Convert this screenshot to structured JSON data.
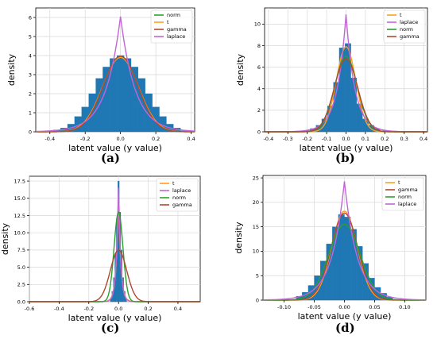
{
  "chart_data": [
    {
      "panel": "(a)",
      "type": "area",
      "xlabel": "latent value (y value)",
      "ylabel": "density",
      "xlim": [
        -0.48,
        0.42
      ],
      "ylim": [
        0,
        6.5
      ],
      "xticks": [
        -0.4,
        -0.2,
        0.0,
        0.2,
        0.4
      ],
      "yticks": [
        0,
        1,
        2,
        3,
        4,
        5,
        6
      ],
      "xtick_labels": [
        "-0.4",
        "-0.2",
        "0.0",
        "0.2",
        "0.4"
      ],
      "ytick_labels": [
        "0",
        "1",
        "2",
        "3",
        "4",
        "5",
        "6"
      ],
      "legend": [
        "norm",
        "t",
        "gamma",
        "laplace"
      ],
      "legend_position": "top-right",
      "grid": true,
      "histogram": {
        "x": [
          -0.4,
          -0.36,
          -0.32,
          -0.28,
          -0.24,
          -0.2,
          -0.16,
          -0.12,
          -0.08,
          -0.04,
          0.0,
          0.04,
          0.08,
          0.12,
          0.16,
          0.2,
          0.24,
          0.28,
          0.32,
          0.36
        ],
        "values": [
          0.05,
          0.1,
          0.2,
          0.4,
          0.8,
          1.3,
          2.0,
          2.8,
          3.4,
          3.85,
          4.0,
          3.85,
          3.4,
          2.8,
          2.0,
          1.3,
          0.8,
          0.4,
          0.2,
          0.05
        ]
      },
      "series": [
        {
          "name": "norm",
          "dist": "normal",
          "peak": 3.95,
          "scale": 0.1
        },
        {
          "name": "t",
          "dist": "normal",
          "peak": 3.9,
          "scale": 0.102
        },
        {
          "name": "gamma",
          "dist": "normal",
          "peak": 3.97,
          "scale": 0.099
        },
        {
          "name": "laplace",
          "dist": "laplace",
          "peak": 6.05,
          "scale": 0.083
        }
      ]
    },
    {
      "panel": "(b)",
      "type": "area",
      "xlabel": "latent value (y value)",
      "ylabel": "density",
      "xlim": [
        -0.42,
        0.42
      ],
      "ylim": [
        0,
        11.5
      ],
      "xticks": [
        -0.4,
        -0.3,
        -0.2,
        -0.1,
        0.0,
        0.1,
        0.2,
        0.3,
        0.4
      ],
      "yticks": [
        0,
        2,
        4,
        6,
        8,
        10
      ],
      "xtick_labels": [
        "-0.4",
        "-0.3",
        "-0.2",
        "-0.1",
        "0.0",
        "0.1",
        "0.2",
        "0.3",
        "0.4"
      ],
      "ytick_labels": [
        "0",
        "2",
        "4",
        "6",
        "8",
        "10"
      ],
      "legend": [
        "t",
        "laplace",
        "norm",
        "gamma"
      ],
      "legend_position": "top-right",
      "grid": true,
      "histogram": {
        "x": [
          -0.2,
          -0.17,
          -0.14,
          -0.11,
          -0.08,
          -0.05,
          -0.02,
          0.01,
          0.04,
          0.07,
          0.1,
          0.13,
          0.16,
          0.19
        ],
        "values": [
          0.1,
          0.3,
          0.6,
          1.2,
          2.4,
          4.6,
          7.8,
          8.2,
          5.0,
          2.6,
          1.2,
          0.6,
          0.3,
          0.1
        ]
      },
      "series": [
        {
          "name": "t",
          "dist": "normal",
          "peak": 7.9,
          "scale": 0.05
        },
        {
          "name": "laplace",
          "dist": "laplace",
          "peak": 10.9,
          "scale": 0.046
        },
        {
          "name": "norm",
          "dist": "normal",
          "peak": 7.0,
          "scale": 0.058
        },
        {
          "name": "gamma",
          "dist": "normal",
          "peak": 6.8,
          "scale": 0.06
        }
      ]
    },
    {
      "panel": "(c)",
      "type": "area",
      "xlabel": "latent value (y value)",
      "ylabel": "density",
      "xlim": [
        -0.6,
        0.55
      ],
      "ylim": [
        0,
        18.2
      ],
      "xticks": [
        -0.6,
        -0.4,
        -0.2,
        0.0,
        0.2,
        0.4
      ],
      "yticks": [
        0.0,
        2.5,
        5.0,
        7.5,
        10.0,
        12.5,
        15.0,
        17.5
      ],
      "xtick_labels": [
        "-0.6",
        "-0.4",
        "-0.2",
        "0.0",
        "0.2",
        "0.4"
      ],
      "ytick_labels": [
        "0.0",
        "2.5",
        "5.0",
        "7.5",
        "10.0",
        "12.5",
        "15.0",
        "17.5"
      ],
      "legend": [
        "t",
        "laplace",
        "norm",
        "gamma"
      ],
      "legend_position": "top-right",
      "grid": true,
      "histogram": {
        "x": [
          -0.05,
          -0.04,
          -0.03,
          -0.02,
          -0.01,
          0.0,
          0.01,
          0.02,
          0.03,
          0.04,
          0.05
        ],
        "values": [
          0.5,
          1.5,
          3.5,
          7.0,
          12.0,
          17.5,
          13.0,
          7.5,
          3.5,
          1.5,
          0.5
        ]
      },
      "series": [
        {
          "name": "t",
          "dist": "laplace",
          "peak": 16.0,
          "scale": 0.015
        },
        {
          "name": "laplace",
          "dist": "laplace",
          "peak": 17.8,
          "scale": 0.014
        },
        {
          "name": "norm",
          "dist": "normal",
          "peak": 13.0,
          "scale": 0.03
        },
        {
          "name": "gamma",
          "dist": "normal",
          "peak": 7.5,
          "scale": 0.055
        }
      ]
    },
    {
      "panel": "(d)",
      "type": "area",
      "xlabel": "latent value (y value)",
      "ylabel": "density",
      "xlim": [
        -0.135,
        0.135
      ],
      "ylim": [
        0,
        25.5
      ],
      "xticks": [
        -0.1,
        -0.05,
        0.0,
        0.05,
        0.1
      ],
      "yticks": [
        0,
        5,
        10,
        15,
        20,
        25
      ],
      "xtick_labels": [
        "-0.10",
        "-0.05",
        "0.00",
        "0.05",
        "0.10"
      ],
      "ytick_labels": [
        "0",
        "5",
        "10",
        "15",
        "20",
        "25"
      ],
      "legend": [
        "t",
        "gamma",
        "norm",
        "laplace"
      ],
      "legend_position": "top-right",
      "grid": true,
      "histogram": {
        "x": [
          -0.075,
          -0.065,
          -0.055,
          -0.045,
          -0.035,
          -0.025,
          -0.015,
          -0.005,
          0.005,
          0.015,
          0.025,
          0.035,
          0.045,
          0.055,
          0.065,
          0.075
        ],
        "values": [
          0.8,
          1.6,
          3.0,
          5.0,
          8.0,
          11.5,
          15.0,
          17.5,
          17.0,
          14.5,
          11.0,
          7.5,
          4.5,
          2.6,
          1.4,
          0.6
        ]
      },
      "series": [
        {
          "name": "t",
          "dist": "normal",
          "peak": 18.2,
          "scale": 0.021
        },
        {
          "name": "gamma",
          "dist": "normal",
          "peak": 17.8,
          "scale": 0.022
        },
        {
          "name": "norm",
          "dist": "normal",
          "peak": 15.5,
          "scale": 0.026
        },
        {
          "name": "laplace",
          "dist": "laplace",
          "peak": 24.3,
          "scale": 0.021
        }
      ]
    }
  ],
  "series_colors": {
    "norm": "#2ca02c",
    "t": "#ff9f1a",
    "gamma": "#ad4a2f",
    "laplace": "#c266d6"
  },
  "histogram_color": "#1f77b4",
  "captions": [
    "(a)",
    "(b)",
    "(c)",
    "(d)"
  ]
}
